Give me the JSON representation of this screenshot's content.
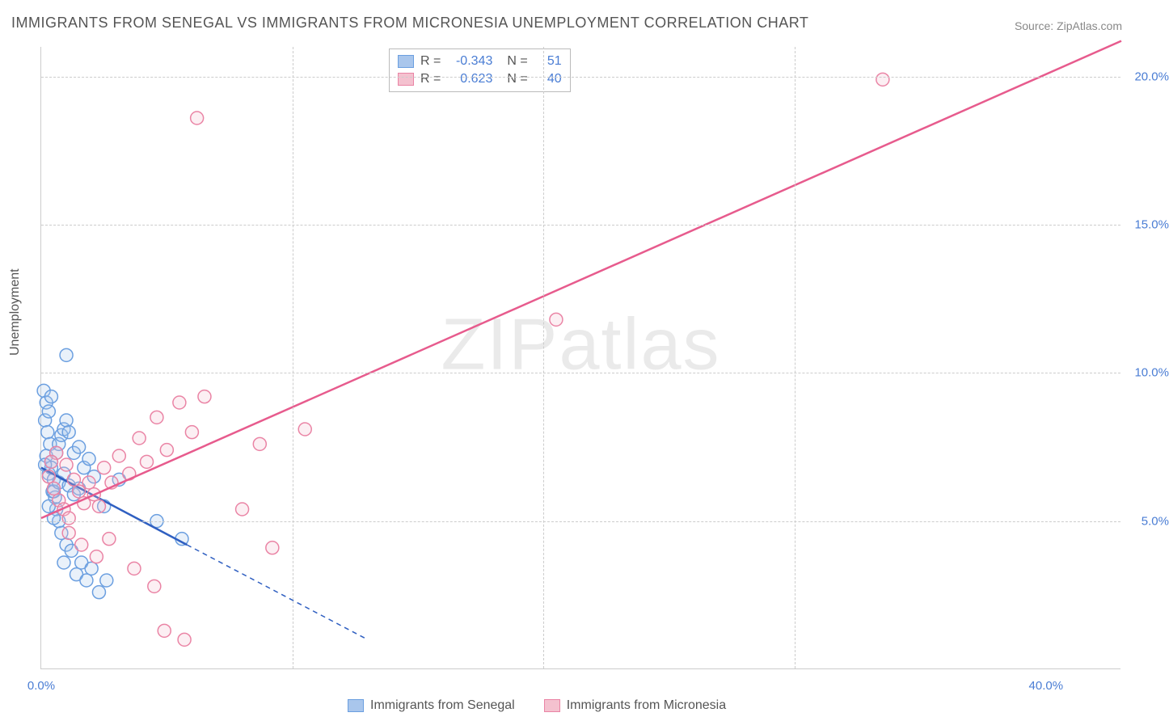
{
  "title": "IMMIGRANTS FROM SENEGAL VS IMMIGRANTS FROM MICRONESIA UNEMPLOYMENT CORRELATION CHART",
  "source": "Source: ZipAtlas.com",
  "ylabel": "Unemployment",
  "watermark": "ZIPatlas",
  "chart": {
    "type": "scatter-correlation",
    "xlim": [
      0,
      43
    ],
    "ylim": [
      0,
      21
    ],
    "xticks": [
      0,
      40
    ],
    "xtick_labels": [
      "0.0%",
      "40.0%"
    ],
    "yticks": [
      5,
      10,
      15,
      20
    ],
    "ytick_labels": [
      "5.0%",
      "10.0%",
      "15.0%",
      "20.0%"
    ],
    "grid_color": "#cccccc",
    "background_color": "#ffffff",
    "axis_label_color": "#4a7dd4",
    "title_color": "#555555",
    "marker_radius": 8,
    "series": [
      {
        "name": "Immigrants from Senegal",
        "color_fill": "#a9c6ec",
        "color_stroke": "#6b9fe0",
        "trend_color": "#2f5fc1",
        "R": "-0.343",
        "N": "51",
        "trend": {
          "x1": 0,
          "y1": 6.8,
          "x2": 5.8,
          "y2": 4.2
        },
        "trend_extrapolate": {
          "x1": 5.8,
          "y1": 4.2,
          "x2": 13.0,
          "y2": 1.0
        },
        "points": [
          [
            0.1,
            9.4
          ],
          [
            0.2,
            9.0
          ],
          [
            0.15,
            8.4
          ],
          [
            0.3,
            8.7
          ],
          [
            0.25,
            8.0
          ],
          [
            0.35,
            7.6
          ],
          [
            0.2,
            7.2
          ],
          [
            0.4,
            7.0
          ],
          [
            0.3,
            6.6
          ],
          [
            0.5,
            6.4
          ],
          [
            0.45,
            6.0
          ],
          [
            0.55,
            5.8
          ],
          [
            0.4,
            6.8
          ],
          [
            0.6,
            7.3
          ],
          [
            0.7,
            7.6
          ],
          [
            0.8,
            7.9
          ],
          [
            0.9,
            8.1
          ],
          [
            1.0,
            8.4
          ],
          [
            1.1,
            8.0
          ],
          [
            1.3,
            7.3
          ],
          [
            1.5,
            7.5
          ],
          [
            1.7,
            6.8
          ],
          [
            1.9,
            7.1
          ],
          [
            2.1,
            6.5
          ],
          [
            0.6,
            5.4
          ],
          [
            0.7,
            5.0
          ],
          [
            0.8,
            4.6
          ],
          [
            1.0,
            4.2
          ],
          [
            1.2,
            4.0
          ],
          [
            0.9,
            3.6
          ],
          [
            1.4,
            3.2
          ],
          [
            1.6,
            3.6
          ],
          [
            1.8,
            3.0
          ],
          [
            2.0,
            3.4
          ],
          [
            2.3,
            2.6
          ],
          [
            2.6,
            3.0
          ],
          [
            0.5,
            6.0
          ],
          [
            0.7,
            6.3
          ],
          [
            0.9,
            6.6
          ],
          [
            1.1,
            6.2
          ],
          [
            1.3,
            5.9
          ],
          [
            1.5,
            6.1
          ],
          [
            2.5,
            5.5
          ],
          [
            3.1,
            6.4
          ],
          [
            4.6,
            5.0
          ],
          [
            5.6,
            4.4
          ],
          [
            1.0,
            10.6
          ],
          [
            0.4,
            9.2
          ],
          [
            0.3,
            5.5
          ],
          [
            0.5,
            5.1
          ],
          [
            0.15,
            6.9
          ]
        ]
      },
      {
        "name": "Immigrants from Micronesia",
        "color_fill": "#f4c1cf",
        "color_stroke": "#ea84a5",
        "trend_color": "#e75b8d",
        "R": "0.623",
        "N": "40",
        "trend": {
          "x1": 0,
          "y1": 5.1,
          "x2": 43,
          "y2": 21.2
        },
        "points": [
          [
            0.3,
            6.5
          ],
          [
            0.5,
            6.1
          ],
          [
            0.7,
            5.7
          ],
          [
            0.9,
            5.4
          ],
          [
            1.1,
            5.1
          ],
          [
            1.3,
            6.4
          ],
          [
            1.5,
            6.0
          ],
          [
            1.7,
            5.6
          ],
          [
            1.9,
            6.3
          ],
          [
            2.1,
            5.9
          ],
          [
            2.3,
            5.5
          ],
          [
            2.5,
            6.8
          ],
          [
            2.8,
            6.3
          ],
          [
            3.1,
            7.2
          ],
          [
            3.5,
            6.6
          ],
          [
            3.9,
            7.8
          ],
          [
            4.2,
            7.0
          ],
          [
            4.6,
            8.5
          ],
          [
            5.0,
            7.4
          ],
          [
            5.5,
            9.0
          ],
          [
            6.0,
            8.0
          ],
          [
            6.5,
            9.2
          ],
          [
            8.0,
            5.4
          ],
          [
            8.7,
            7.6
          ],
          [
            9.2,
            4.1
          ],
          [
            10.5,
            8.1
          ],
          [
            1.1,
            4.6
          ],
          [
            1.6,
            4.2
          ],
          [
            2.2,
            3.8
          ],
          [
            2.7,
            4.4
          ],
          [
            3.7,
            3.4
          ],
          [
            4.5,
            2.8
          ],
          [
            4.9,
            1.3
          ],
          [
            5.7,
            1.0
          ],
          [
            6.2,
            18.6
          ],
          [
            20.5,
            11.8
          ],
          [
            33.5,
            19.9
          ],
          [
            1.0,
            6.9
          ],
          [
            0.6,
            7.3
          ],
          [
            0.4,
            7.0
          ]
        ]
      }
    ],
    "stats_box": {
      "rows": [
        {
          "swatch_fill": "#a9c6ec",
          "swatch_stroke": "#6b9fe0",
          "R_label": "R =",
          "R_val": "-0.343",
          "N_label": "N =",
          "N_val": "51"
        },
        {
          "swatch_fill": "#f4c1cf",
          "swatch_stroke": "#ea84a5",
          "R_label": "R =",
          "R_val": "0.623",
          "N_label": "N =",
          "N_val": "40"
        }
      ]
    },
    "bottom_legend": [
      {
        "swatch_fill": "#a9c6ec",
        "swatch_stroke": "#6b9fe0",
        "label": "Immigrants from Senegal"
      },
      {
        "swatch_fill": "#f4c1cf",
        "swatch_stroke": "#ea84a5",
        "label": "Immigrants from Micronesia"
      }
    ]
  }
}
